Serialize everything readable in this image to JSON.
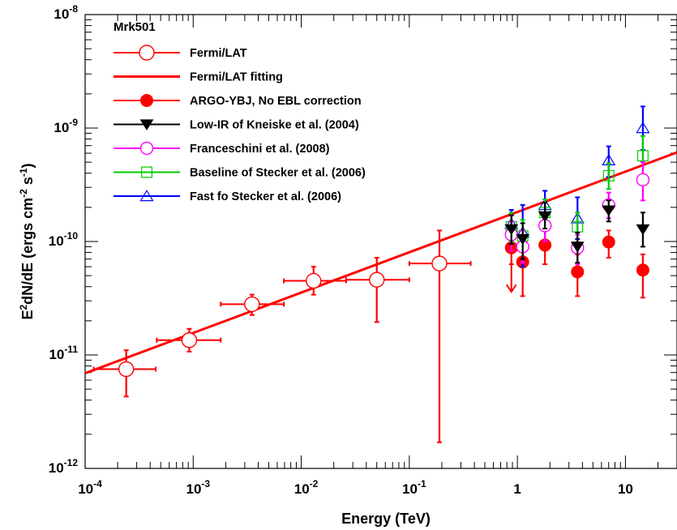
{
  "chart_data": {
    "type": "scatter",
    "title": "Mrk501",
    "xlabel": "Energy (TeV)",
    "ylabel": {
      "base": "E",
      "sup1": "2",
      "mid": "dN/dE (ergs cm",
      "sup2": "-2",
      "mid2": " s",
      "sup3": "-1",
      "end": ")"
    },
    "x_scale": "log",
    "y_scale": "log",
    "xlim": [
      0.0001,
      30
    ],
    "ylim": [
      1e-12,
      1e-08
    ],
    "x_ticks": [
      {
        "value": 0.0001,
        "base": "10",
        "exp": "-4"
      },
      {
        "value": 0.001,
        "base": "10",
        "exp": "-3"
      },
      {
        "value": 0.01,
        "base": "10",
        "exp": "-2"
      },
      {
        "value": 0.1,
        "base": "10",
        "exp": "-1"
      },
      {
        "value": 1,
        "base": "1",
        "exp": ""
      },
      {
        "value": 10,
        "base": "10",
        "exp": ""
      }
    ],
    "y_ticks": [
      {
        "value": 1e-12,
        "base": "10",
        "exp": "-12"
      },
      {
        "value": 1e-11,
        "base": "10",
        "exp": "-11"
      },
      {
        "value": 1e-10,
        "base": "10",
        "exp": "-10"
      },
      {
        "value": 1e-09,
        "base": "10",
        "exp": "-9"
      },
      {
        "value": 1e-08,
        "base": "10",
        "exp": "-8"
      }
    ],
    "legend_position": "top-left",
    "series": [
      {
        "name": "Fermi/LAT",
        "marker": "circle-open",
        "color": "#ff0000",
        "points": [
          {
            "x": 0.00024,
            "y": 7.5e-12,
            "xlo": 0.00012,
            "xhi": 0.00045,
            "ylo": 4.3e-12,
            "yhi": 1.1e-11
          },
          {
            "x": 0.00092,
            "y": 1.35e-11,
            "xlo": 0.00046,
            "xhi": 0.0018,
            "ylo": 1.07e-11,
            "yhi": 1.7e-11
          },
          {
            "x": 0.0035,
            "y": 2.8e-11,
            "xlo": 0.0018,
            "xhi": 0.0069,
            "ylo": 2.25e-11,
            "yhi": 3.4e-11
          },
          {
            "x": 0.013,
            "y": 4.5e-11,
            "xlo": 0.0069,
            "xhi": 0.026,
            "ylo": 3.4e-11,
            "yhi": 6e-11
          },
          {
            "x": 0.05,
            "y": 4.6e-11,
            "xlo": 0.026,
            "xhi": 0.1,
            "ylo": 1.95e-11,
            "yhi": 7.2e-11
          },
          {
            "x": 0.19,
            "y": 6.4e-11,
            "xlo": 0.1,
            "xhi": 0.37,
            "ylo": 1.7e-12,
            "yhi": 1.25e-10
          }
        ]
      },
      {
        "name": "Fermi/LAT fitting",
        "marker": "line",
        "color": "#ff0000",
        "line": [
          {
            "x": 0.0001,
            "y": 6.9e-12
          },
          {
            "x": 30,
            "y": 6.1e-10
          }
        ]
      },
      {
        "name": "ARGO-YBJ, No EBL correction",
        "marker": "circle-filled",
        "color": "#ff0000",
        "points": [
          {
            "x": 0.88,
            "y": 8.8e-11,
            "ylo": 6.3e-11,
            "yhi": 1.2e-10
          },
          {
            "x": 1.12,
            "y": 6.6e-11,
            "ylo": 3.3e-11,
            "yhi": 1.05e-10
          },
          {
            "x": 1.8,
            "y": 9.3e-11,
            "ylo": 6.3e-11,
            "yhi": 1.25e-10
          },
          {
            "x": 3.6,
            "y": 5.4e-11,
            "ylo": 3.3e-11,
            "yhi": 7.7e-11
          },
          {
            "x": 7.0,
            "y": 9.9e-11,
            "ylo": 7.2e-11,
            "yhi": 1.25e-10
          },
          {
            "x": 14.5,
            "y": 5.6e-11,
            "ylo": 3.2e-11,
            "yhi": 7.7e-11
          }
        ],
        "upper_limits": [
          {
            "x": 0.88,
            "y": 6.6e-11,
            "ylo": 3.6e-11
          }
        ]
      },
      {
        "name": "Low-IR of Kneiske et al. (2004)",
        "marker": "triangle-down-filled",
        "color": "#000000",
        "points": [
          {
            "x": 0.88,
            "y": 1.28e-10,
            "ylo": 9.5e-11,
            "yhi": 1.7e-10
          },
          {
            "x": 1.12,
            "y": 1.05e-10,
            "ylo": 7e-11,
            "yhi": 1.45e-10
          },
          {
            "x": 1.8,
            "y": 1.67e-10,
            "ylo": 1.3e-10,
            "yhi": 2.2e-10
          },
          {
            "x": 3.6,
            "y": 9e-11,
            "ylo": 6.5e-11,
            "yhi": 1.2e-10
          },
          {
            "x": 7.0,
            "y": 1.88e-10,
            "ylo": 1.5e-10,
            "yhi": 2.3e-10
          },
          {
            "x": 14.5,
            "y": 1.28e-10,
            "ylo": 9e-11,
            "yhi": 1.8e-10
          }
        ]
      },
      {
        "name": "Franceschini et al. (2008)",
        "marker": "circle-open",
        "color": "#ff00ff",
        "points": [
          {
            "x": 0.88,
            "y": 1.15e-10,
            "ylo": 8.3e-11,
            "yhi": 1.5e-10
          },
          {
            "x": 1.12,
            "y": 9e-11,
            "ylo": 6.5e-11,
            "yhi": 1.25e-10
          },
          {
            "x": 1.8,
            "y": 1.38e-10,
            "ylo": 1e-10,
            "yhi": 1.8e-10
          },
          {
            "x": 3.6,
            "y": 8.8e-11,
            "ylo": 6.3e-11,
            "yhi": 1.15e-10
          },
          {
            "x": 7.0,
            "y": 2.1e-10,
            "ylo": 1.6e-10,
            "yhi": 2.7e-10
          },
          {
            "x": 14.5,
            "y": 3.5e-10,
            "ylo": 2.3e-10,
            "yhi": 5e-10
          }
        ]
      },
      {
        "name": "Baseline of Stecker et al. (2006)",
        "marker": "square-open",
        "color": "#00cc00",
        "points": [
          {
            "x": 0.88,
            "y": 1.35e-10,
            "ylo": 1e-10,
            "yhi": 1.8e-10
          },
          {
            "x": 1.12,
            "y": 1.12e-10,
            "ylo": 8e-11,
            "yhi": 1.55e-10
          },
          {
            "x": 1.8,
            "y": 1.8e-10,
            "ylo": 1.4e-10,
            "yhi": 2.35e-10
          },
          {
            "x": 3.6,
            "y": 1.35e-10,
            "ylo": 9.5e-11,
            "yhi": 1.8e-10
          },
          {
            "x": 7.0,
            "y": 3.8e-10,
            "ylo": 2.9e-10,
            "yhi": 4.9e-10
          },
          {
            "x": 14.5,
            "y": 5.7e-10,
            "ylo": 3.8e-10,
            "yhi": 8.5e-10
          }
        ]
      },
      {
        "name": "Fast fo Stecker et al. (2006)",
        "marker": "triangle-up-open",
        "color": "#0000ff",
        "points": [
          {
            "x": 0.88,
            "y": 1.43e-10,
            "ylo": 1.05e-10,
            "yhi": 1.9e-10
          },
          {
            "x": 1.12,
            "y": 1.2e-10,
            "ylo": 6e-11,
            "yhi": 2.1e-10
          },
          {
            "x": 1.8,
            "y": 2.1e-10,
            "ylo": 1.6e-10,
            "yhi": 2.8e-10
          },
          {
            "x": 3.6,
            "y": 1.6e-10,
            "ylo": 1.05e-10,
            "yhi": 2.45e-10
          },
          {
            "x": 7.0,
            "y": 5.2e-10,
            "ylo": 3.7e-10,
            "yhi": 6.9e-10
          },
          {
            "x": 14.5,
            "y": 1e-09,
            "ylo": 6.4e-10,
            "yhi": 1.55e-09
          }
        ]
      }
    ]
  }
}
